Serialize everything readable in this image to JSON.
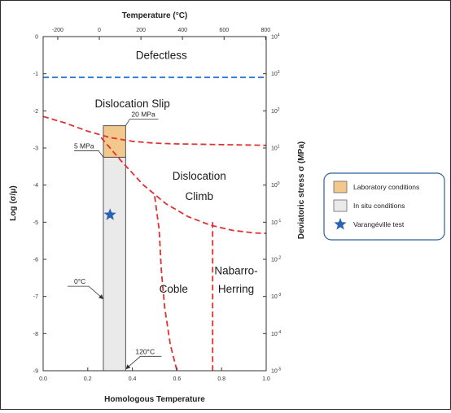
{
  "chart_data": {
    "type": "deformation-map",
    "title": "",
    "xlabel": "Homologous Temperature",
    "ylabel_left": "Log (σ/μ)",
    "xlabel_top": "Temperature (°C)",
    "ylabel_right": "Deviatoric stress σ (MPa)",
    "xlim": [
      0.0,
      1.0
    ],
    "ylim": [
      -9,
      0
    ],
    "x_ticks": [
      "0.0",
      "0.2",
      "0.4",
      "0.6",
      "0.8",
      "1.0"
    ],
    "y_ticks": [
      "0",
      "-1",
      "-2",
      "-3",
      "-4",
      "-5",
      "-6",
      "-7",
      "-8",
      "-9"
    ],
    "top_ticks": [
      {
        "x": 0.0655,
        "label": "-200"
      },
      {
        "x": 0.2518,
        "label": "0"
      },
      {
        "x": 0.4384,
        "label": "200"
      },
      {
        "x": 0.6247,
        "label": "400"
      },
      {
        "x": 0.8112,
        "label": "600"
      },
      {
        "x": 0.9976,
        "label": "800"
      }
    ],
    "right_ticks": [
      {
        "y": 0,
        "base": "10",
        "exp": "4"
      },
      {
        "y": -1,
        "base": "10",
        "exp": "3"
      },
      {
        "y": -2,
        "base": "10",
        "exp": "2"
      },
      {
        "y": -3,
        "base": "10",
        "exp": "1"
      },
      {
        "y": -4,
        "base": "10",
        "exp": "0"
      },
      {
        "y": -5,
        "base": "10",
        "exp": "-1"
      },
      {
        "y": -6,
        "base": "10",
        "exp": "-2"
      },
      {
        "y": -7,
        "base": "10",
        "exp": "-3"
      },
      {
        "y": -8,
        "base": "10",
        "exp": "-4"
      },
      {
        "y": -9,
        "base": "10",
        "exp": "-5"
      }
    ],
    "regions": [
      {
        "label": "Defectless",
        "x": 0.53,
        "y": -0.6
      },
      {
        "label": "Dislocation Slip",
        "x": 0.4,
        "y": -1.9
      },
      {
        "label": "Dislocation",
        "x": 0.7,
        "y": -3.85
      },
      {
        "label": "Climb",
        "x": 0.7,
        "y": -4.4
      },
      {
        "label": "Coble",
        "x": 0.585,
        "y": -6.9
      },
      {
        "label": "Nabarro-",
        "x": 0.865,
        "y": -6.4
      },
      {
        "label": "Herring",
        "x": 0.865,
        "y": -6.9
      }
    ],
    "boundaries": [
      {
        "name": "defectless",
        "color": "#2e7bd6",
        "points": [
          [
            0.0,
            -1.1
          ],
          [
            1.0,
            -1.1
          ]
        ]
      },
      {
        "name": "slip-climb",
        "color": "#e03030",
        "points": [
          [
            0.0,
            -2.15
          ],
          [
            0.1,
            -2.33
          ],
          [
            0.2,
            -2.55
          ],
          [
            0.3,
            -2.72
          ],
          [
            0.4,
            -2.82
          ],
          [
            0.5,
            -2.87
          ],
          [
            0.6,
            -2.89
          ],
          [
            0.7,
            -2.9
          ],
          [
            0.8,
            -2.91
          ],
          [
            0.9,
            -2.92
          ],
          [
            1.0,
            -2.93
          ]
        ]
      },
      {
        "name": "climb-diffusion",
        "color": "#e03030",
        "points": [
          [
            0.26,
            -2.72
          ],
          [
            0.35,
            -3.35
          ],
          [
            0.45,
            -4.0
          ],
          [
            0.55,
            -4.5
          ],
          [
            0.65,
            -4.85
          ],
          [
            0.75,
            -5.08
          ],
          [
            0.85,
            -5.22
          ],
          [
            0.95,
            -5.29
          ],
          [
            1.0,
            -5.3
          ]
        ]
      },
      {
        "name": "coble-a",
        "color": "#e03030",
        "points": [
          [
            0.5,
            -4.3
          ],
          [
            0.52,
            -5.2
          ],
          [
            0.53,
            -6.3
          ],
          [
            0.545,
            -7.3
          ],
          [
            0.57,
            -8.3
          ],
          [
            0.6,
            -9.0
          ]
        ]
      },
      {
        "name": "coble-nabarro",
        "color": "#e03030",
        "points": [
          [
            0.76,
            -5.0
          ],
          [
            0.76,
            -9.0
          ]
        ]
      }
    ],
    "lab_box": {
      "x0": 0.27,
      "x1": 0.37,
      "y0": -2.4,
      "y1": -3.25,
      "color": "#f2c88d"
    },
    "insitu_box": {
      "x0": 0.27,
      "x1": 0.37,
      "y0": -3.25,
      "y1": -9.0,
      "color": "#eaeaea"
    },
    "test_point": {
      "x": 0.3,
      "y": -4.8,
      "color": "#2a62b4"
    },
    "annotations": [
      {
        "text": "20 MPa",
        "x": 0.37,
        "y": -2.4
      },
      {
        "text": "5 MPa",
        "x": 0.27,
        "y": -3.25
      },
      {
        "text": "0°C",
        "x": 0.27,
        "y": -6.9
      },
      {
        "text": "120°C",
        "x": 0.37,
        "y": -8.7
      }
    ],
    "legend": {
      "placement": "right",
      "entries": [
        {
          "label": "Laboratory conditions",
          "color": "#f2c88d",
          "marker": "box"
        },
        {
          "label": "In situ conditions",
          "color": "#eaeaea",
          "marker": "box"
        },
        {
          "label": "Varangéville test",
          "color": "#2a62b4",
          "marker": "star"
        }
      ]
    }
  }
}
